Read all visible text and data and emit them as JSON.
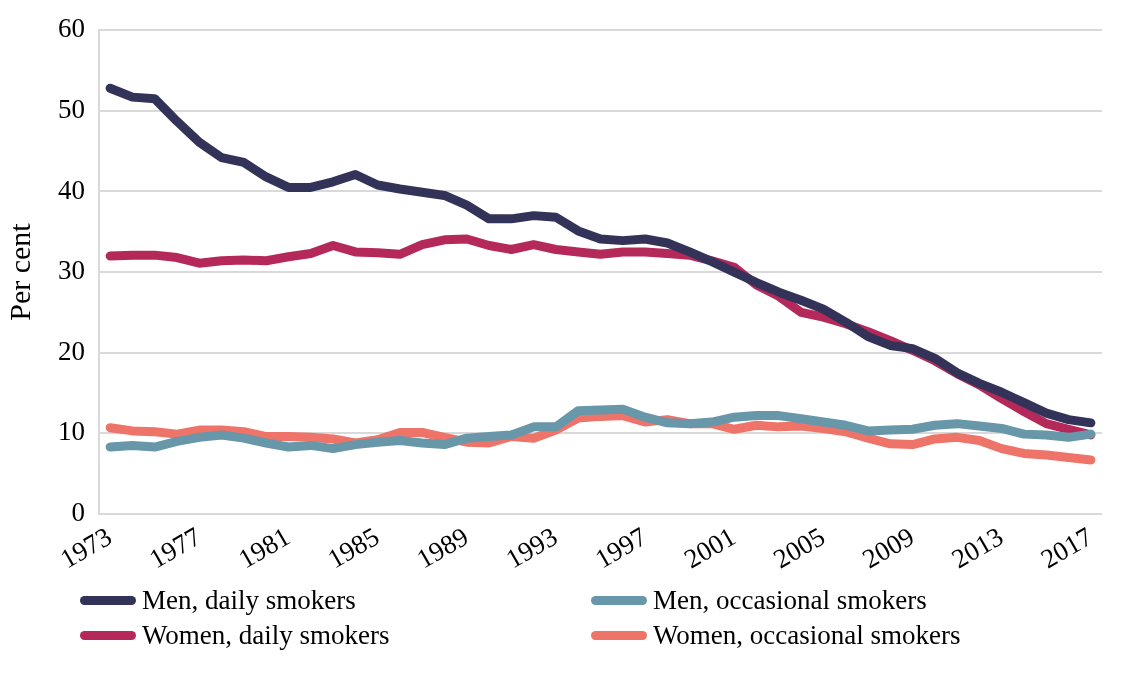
{
  "chart_data": {
    "type": "line",
    "ylabel": "Per cent",
    "categories": [
      "1973",
      null,
      null,
      null,
      "1977",
      null,
      null,
      null,
      "1981",
      null,
      null,
      null,
      "1985",
      null,
      null,
      null,
      "1989",
      null,
      null,
      null,
      "1993",
      null,
      null,
      null,
      "1997",
      null,
      null,
      null,
      "2001",
      null,
      null,
      null,
      "2005",
      null,
      null,
      null,
      "2009",
      null,
      null,
      null,
      "2013",
      null,
      null,
      null,
      "2017"
    ],
    "series": [
      {
        "name": "Men, daily smokers",
        "color": "#33335a",
        "values": [
          52.8,
          51.7,
          51.5,
          48.7,
          46.1,
          44.2,
          43.6,
          41.8,
          40.5,
          40.5,
          41.2,
          42.1,
          40.8,
          40.3,
          39.9,
          39.5,
          38.3,
          36.6,
          36.6,
          37.0,
          36.8,
          35.1,
          34.1,
          33.9,
          34.1,
          33.6,
          32.5,
          31.3,
          30.0,
          28.7,
          27.5,
          26.5,
          25.4,
          23.8,
          22.0,
          20.9,
          20.5,
          19.3,
          17.5,
          16.2,
          15.1,
          13.8,
          12.5,
          11.7,
          11.3
        ]
      },
      {
        "name": "Men, occasional smokers",
        "color": "#6797a8",
        "values": [
          8.3,
          8.5,
          8.3,
          9.0,
          9.5,
          9.8,
          9.4,
          8.8,
          8.3,
          8.5,
          8.1,
          8.6,
          8.9,
          9.1,
          8.8,
          8.6,
          9.4,
          9.6,
          9.8,
          10.8,
          10.8,
          12.8,
          12.9,
          13.0,
          12.0,
          11.3,
          11.2,
          11.4,
          12.0,
          12.2,
          12.2,
          11.8,
          11.4,
          11.0,
          10.3,
          10.4,
          10.5,
          11.0,
          11.2,
          10.9,
          10.6,
          9.9,
          9.8,
          9.5,
          9.9
        ]
      },
      {
        "name": "Women, daily smokers",
        "color": "#b5295a",
        "values": [
          32.0,
          32.1,
          32.1,
          31.8,
          31.1,
          31.4,
          31.5,
          31.4,
          31.9,
          32.3,
          33.3,
          32.5,
          32.4,
          32.2,
          33.4,
          34.0,
          34.1,
          33.3,
          32.8,
          33.4,
          32.8,
          32.5,
          32.2,
          32.5,
          32.5,
          32.3,
          32.1,
          31.4,
          30.6,
          28.4,
          27.0,
          25.0,
          24.4,
          23.6,
          22.6,
          21.5,
          20.3,
          19.0,
          17.4,
          16.0,
          14.3,
          12.7,
          11.2,
          10.5,
          9.8
        ]
      },
      {
        "name": "Women, occasional smokers",
        "color": "#ee7469",
        "values": [
          10.7,
          10.3,
          10.2,
          9.9,
          10.4,
          10.4,
          10.2,
          9.6,
          9.6,
          9.5,
          9.3,
          8.8,
          9.2,
          10.1,
          10.1,
          9.5,
          8.9,
          8.8,
          9.6,
          9.4,
          10.4,
          11.9,
          12.1,
          12.2,
          11.4,
          11.7,
          11.2,
          11.2,
          10.5,
          11.0,
          10.8,
          10.9,
          10.6,
          10.2,
          9.4,
          8.7,
          8.6,
          9.3,
          9.5,
          9.1,
          8.1,
          7.5,
          7.3,
          7.0,
          6.7
        ]
      }
    ],
    "ylim": [
      0,
      60
    ],
    "yticks": [
      0,
      10,
      20,
      30,
      40,
      50,
      60
    ],
    "grid": "y",
    "legend": "bottom",
    "marker": "none",
    "line_style": "solid"
  }
}
